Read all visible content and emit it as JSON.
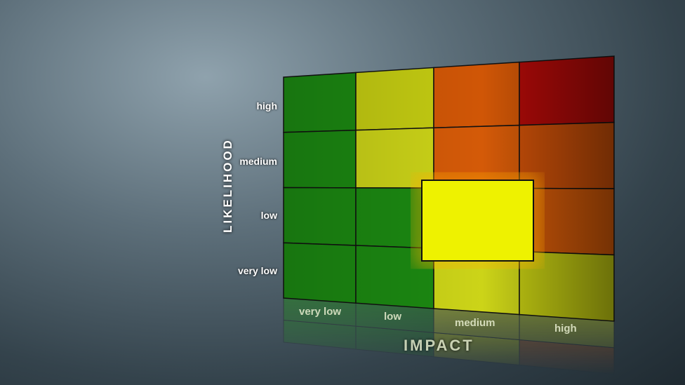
{
  "likelihood_label": "LIKELIHOOD",
  "impact_label": "IMPACT",
  "likelihood_levels": [
    "high",
    "medium",
    "low",
    "very low"
  ],
  "impact_levels": [
    "very low",
    "low",
    "medium",
    "high"
  ],
  "cell_colors": [
    [
      "#1c8a12",
      "#c4cc12",
      "#d05606",
      "#b00a08"
    ],
    [
      "#1c8a12",
      "#ccd418",
      "#d45a08",
      "#cc5008"
    ],
    [
      "#1c8a12",
      "#1c8a12",
      "#e8f000",
      "#d45a08"
    ],
    [
      "#1c8a12",
      "#1c8a12",
      "#ccd418",
      "#c4cc12"
    ]
  ],
  "highlight_color": "#eef200"
}
